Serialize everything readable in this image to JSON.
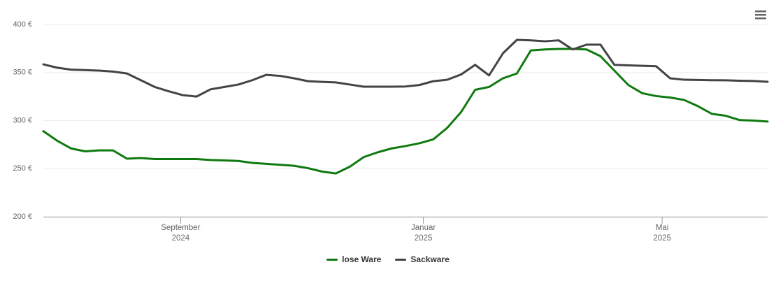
{
  "chart_data": {
    "type": "line",
    "x": [
      "2024-06-24",
      "2024-07-01",
      "2024-07-08",
      "2024-07-15",
      "2024-07-22",
      "2024-07-29",
      "2024-08-05",
      "2024-08-12",
      "2024-08-19",
      "2024-08-26",
      "2024-09-02",
      "2024-09-09",
      "2024-09-16",
      "2024-09-23",
      "2024-09-30",
      "2024-10-07",
      "2024-10-14",
      "2024-10-21",
      "2024-10-28",
      "2024-11-04",
      "2024-11-11",
      "2024-11-18",
      "2024-11-25",
      "2024-12-02",
      "2024-12-09",
      "2024-12-16",
      "2024-12-23",
      "2024-12-30",
      "2025-01-06",
      "2025-01-13",
      "2025-01-20",
      "2025-01-27",
      "2025-02-03",
      "2025-02-10",
      "2025-02-17",
      "2025-02-24",
      "2025-03-03",
      "2025-03-10",
      "2025-03-17",
      "2025-03-24",
      "2025-03-31",
      "2025-04-07",
      "2025-04-14",
      "2025-04-21",
      "2025-04-28",
      "2025-05-05",
      "2025-05-12",
      "2025-05-19",
      "2025-05-26",
      "2025-06-02",
      "2025-06-09",
      "2025-06-16",
      "2025-06-23"
    ],
    "series": [
      {
        "name": "lose Ware",
        "color": "#0f7a0f",
        "values": [
          289,
          279,
          271,
          268,
          269,
          269,
          260.4,
          261,
          260,
          260,
          260,
          260,
          259,
          258.5,
          258,
          256,
          255,
          254,
          253,
          250.5,
          247,
          245,
          252,
          262,
          267,
          271,
          273.5,
          276.4,
          280.5,
          292.5,
          309,
          332,
          335,
          344,
          349,
          373,
          374,
          374.5,
          374.5,
          374,
          367,
          352,
          337,
          328.5,
          325.5,
          324,
          321.5,
          315,
          307,
          305,
          300.5,
          300,
          299
        ]
      },
      {
        "name": "Sackware",
        "color": "#434348",
        "values": [
          358.5,
          355,
          353,
          352.5,
          352,
          351,
          349,
          342,
          335,
          330.5,
          326.5,
          325,
          332.5,
          335,
          337.5,
          342,
          347.6,
          346.5,
          344,
          341,
          340.3,
          339.7,
          337.5,
          335.3,
          335.3,
          335.3,
          335.5,
          337,
          341,
          342.5,
          348,
          358,
          347,
          370,
          384,
          383.5,
          382.5,
          383.5,
          374,
          379,
          379,
          358,
          357.5,
          357,
          356.5,
          344,
          342.5,
          342.3,
          342,
          341.9,
          341.5,
          341.2,
          340.4
        ]
      }
    ],
    "xlim": [
      "2024-06-24",
      "2025-06-23"
    ],
    "xticks": [
      {
        "value": "2024-09-01",
        "label": "September\n2024"
      },
      {
        "value": "2025-01-01",
        "label": "Januar\n2025"
      },
      {
        "value": "2025-05-01",
        "label": "Mai\n2025"
      }
    ],
    "ylim": [
      200,
      400
    ],
    "yticks": [
      {
        "value": 200,
        "label": "200 €"
      },
      {
        "value": 250,
        "label": "250 €"
      },
      {
        "value": 300,
        "label": "300 €"
      },
      {
        "value": 350,
        "label": "350 €"
      },
      {
        "value": 400,
        "label": "400 €"
      }
    ],
    "grid": true
  }
}
